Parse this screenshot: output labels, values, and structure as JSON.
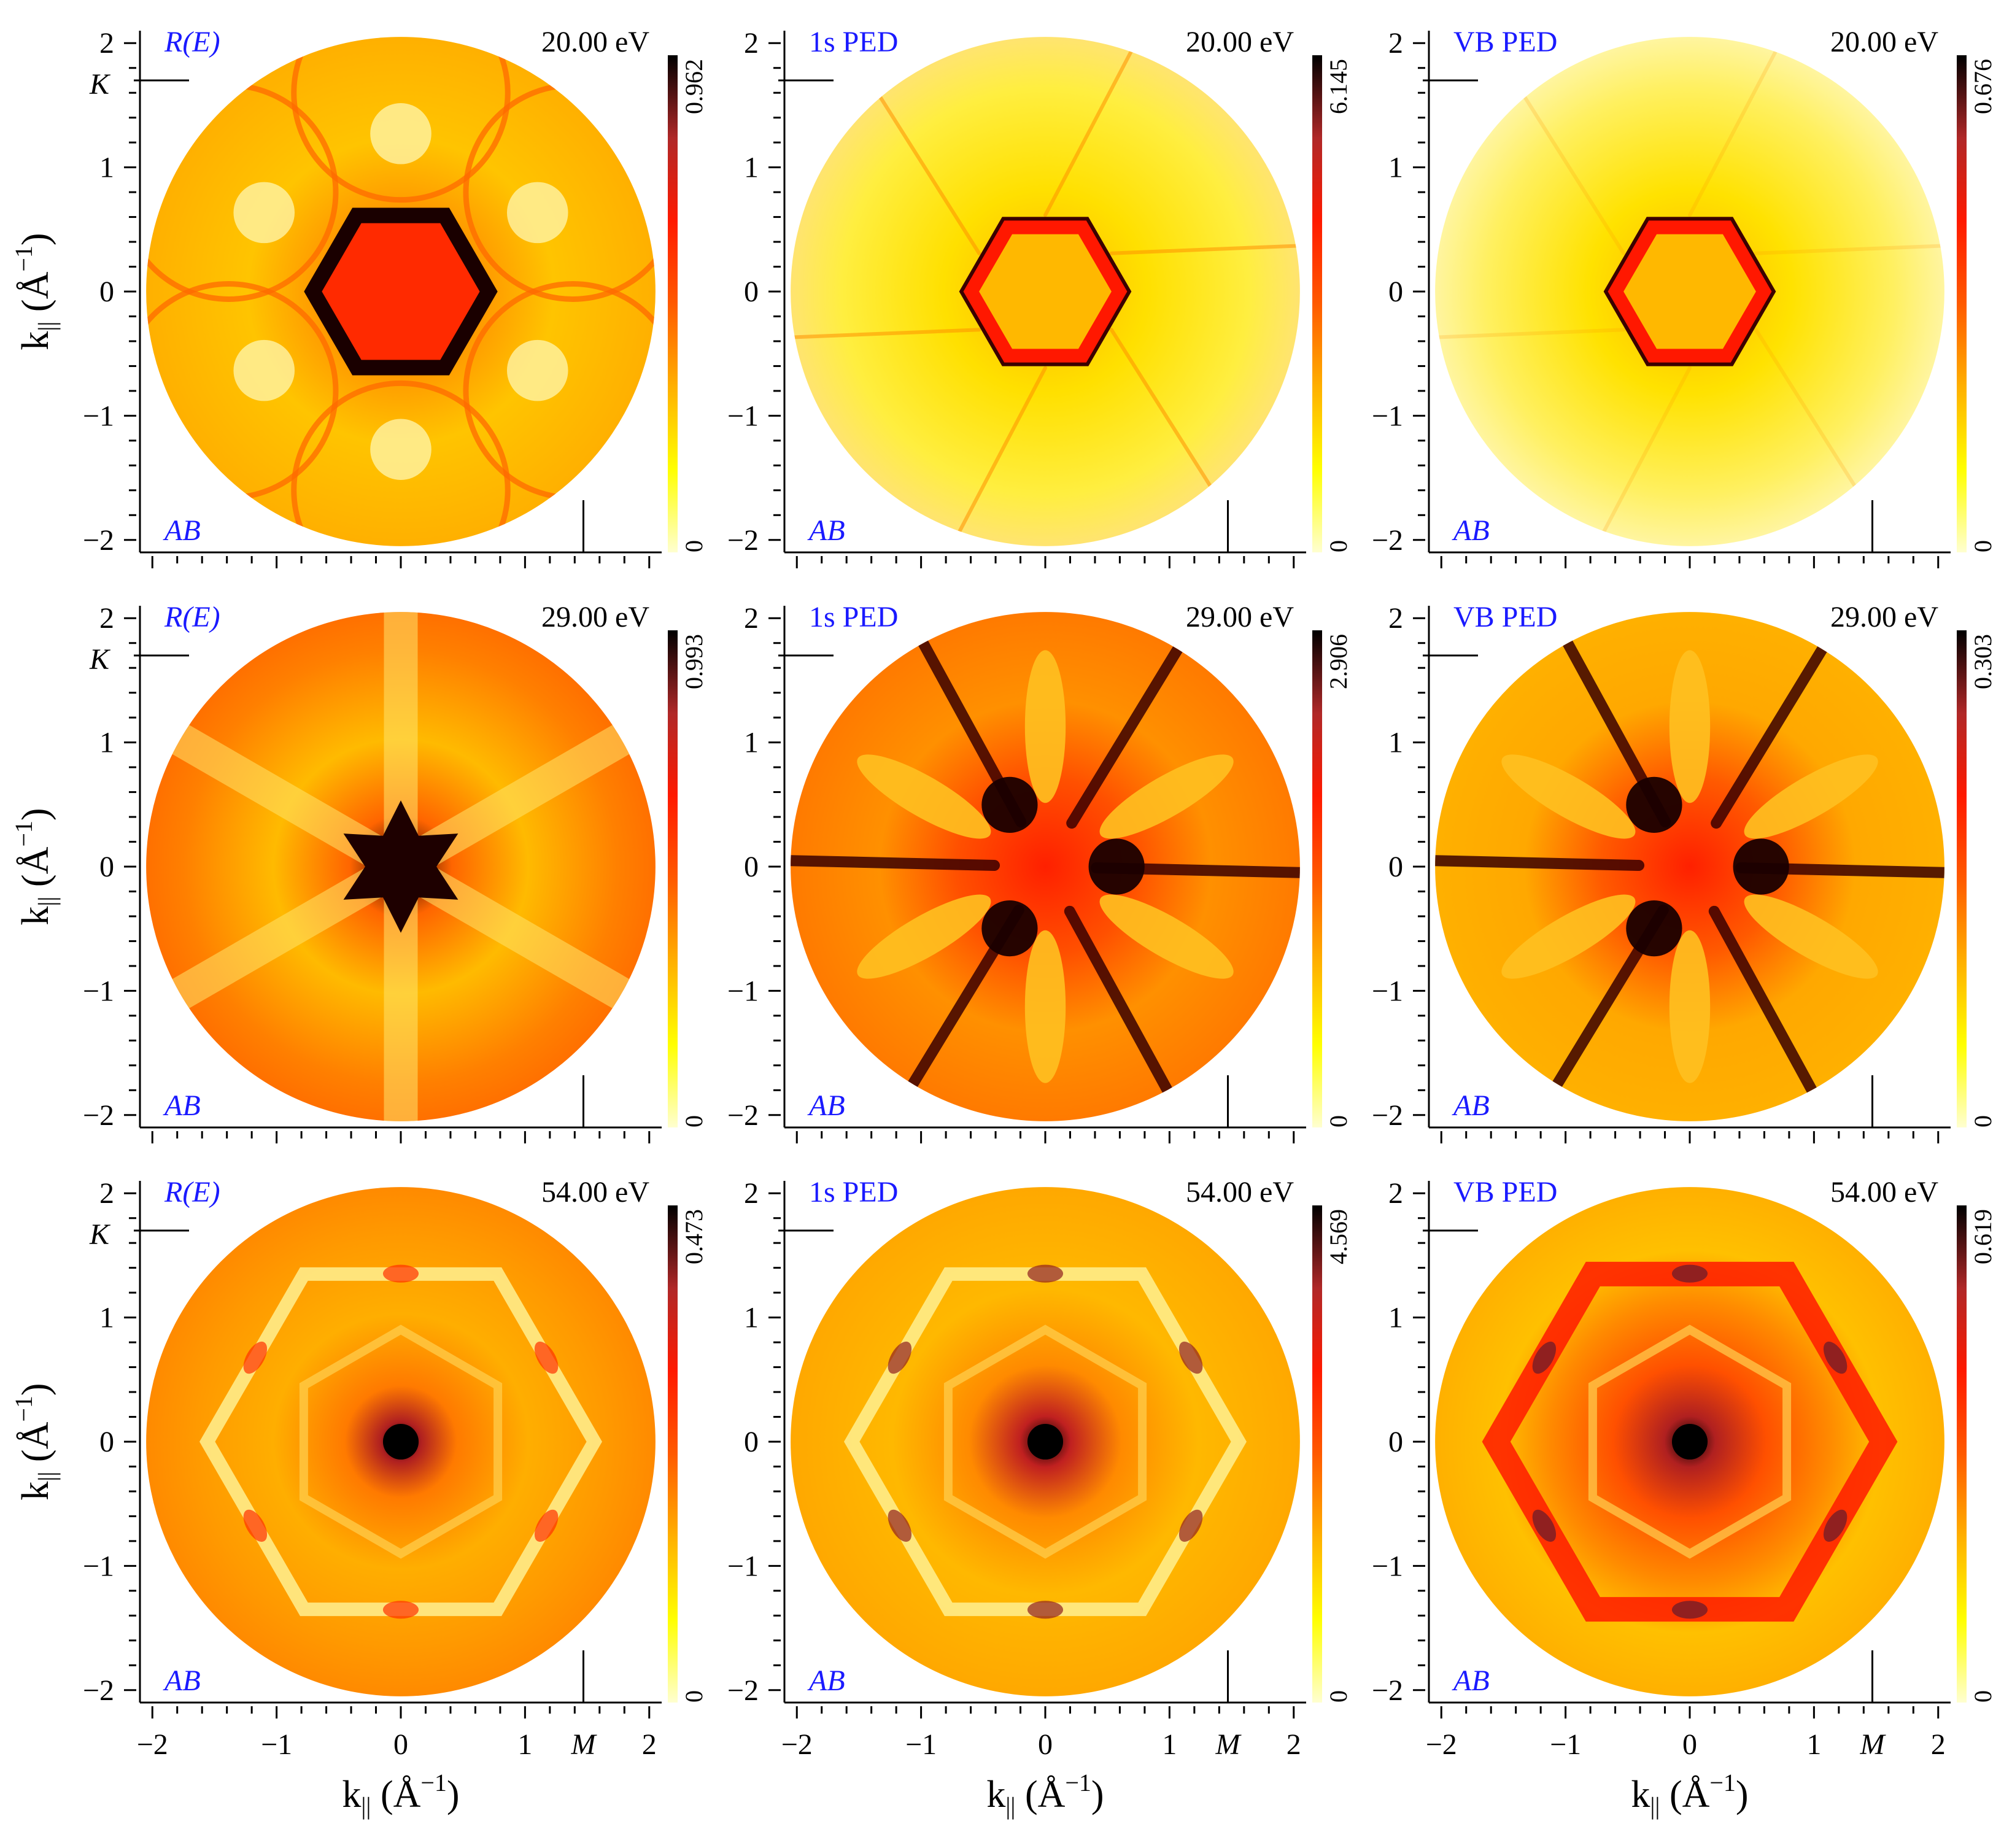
{
  "colors": {
    "colormap": [
      "#ffffd0",
      "#ffff00",
      "#ffb000",
      "#ff5a00",
      "#ff1a00",
      "#b02828",
      "#000000"
    ],
    "label_blue": "#1a1aff",
    "background": "#ffffff"
  },
  "axes": {
    "x_label_base": "k",
    "x_label_sub": "||",
    "x_label_unit": " (Å",
    "x_label_exp": "−1",
    "x_label_close": ")",
    "y_label_base": "k",
    "y_label_sub": "||",
    "y_label_unit": " (Å",
    "y_label_exp": "−1",
    "y_label_close": ")",
    "x_ticks": [
      "−2",
      "−1",
      "0",
      "1",
      "2"
    ],
    "y_ticks": [
      "2",
      "1",
      "0",
      "−1",
      "−2"
    ],
    "tick_values": [
      -2,
      -1,
      0,
      1,
      2
    ],
    "xlim": [
      -2.1,
      2.1
    ],
    "ylim": [
      -2.1,
      2.1
    ],
    "M_label": "M",
    "K_label": "K",
    "M_value": 1.47,
    "K_value": 1.7,
    "AB_label": "AB"
  },
  "chart_data": [
    {
      "type": "heatmap",
      "row": 0,
      "col": 0,
      "title": "R(E)",
      "energy": "20.00 eV",
      "cb_max": "0.962",
      "cb_min": "0",
      "pattern": "ring-hexagon"
    },
    {
      "type": "heatmap",
      "row": 0,
      "col": 1,
      "title": "1s PED",
      "energy": "20.00 eV",
      "cb_max": "6.145",
      "cb_min": "0",
      "pattern": "pale-hexagon"
    },
    {
      "type": "heatmap",
      "row": 0,
      "col": 2,
      "title": "VB PED",
      "energy": "20.00 eV",
      "cb_max": "0.676",
      "cb_min": "0",
      "pattern": "pale-hexagon-vb"
    },
    {
      "type": "heatmap",
      "row": 1,
      "col": 0,
      "title": "R(E)",
      "energy": "29.00 eV",
      "cb_max": "0.993",
      "cb_min": "0",
      "pattern": "star"
    },
    {
      "type": "heatmap",
      "row": 1,
      "col": 1,
      "title": "1s PED",
      "energy": "29.00 eV",
      "cb_max": "2.906",
      "cb_min": "0",
      "pattern": "dark-web"
    },
    {
      "type": "heatmap",
      "row": 1,
      "col": 2,
      "title": "VB PED",
      "energy": "29.00 eV",
      "cb_max": "0.303",
      "cb_min": "0",
      "pattern": "dark-web-vb"
    },
    {
      "type": "heatmap",
      "row": 2,
      "col": 0,
      "title": "R(E)",
      "energy": "54.00 eV",
      "cb_max": "0.473",
      "cb_min": "0",
      "pattern": "hex-ring"
    },
    {
      "type": "heatmap",
      "row": 2,
      "col": 1,
      "title": "1s PED",
      "energy": "54.00 eV",
      "cb_max": "4.569",
      "cb_min": "0",
      "pattern": "hex-spots"
    },
    {
      "type": "heatmap",
      "row": 2,
      "col": 2,
      "title": "VB PED",
      "energy": "54.00 eV",
      "cb_max": "0.619",
      "cb_min": "0",
      "pattern": "hex-dark"
    }
  ]
}
